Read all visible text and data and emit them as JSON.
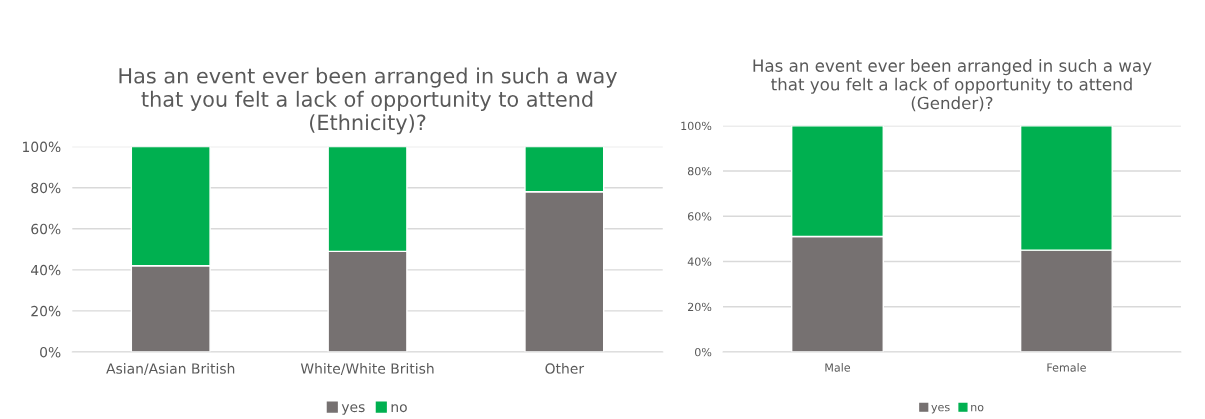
{
  "chart_data": [
    {
      "type": "bar",
      "stacked": true,
      "title": "Has an event ever been arranged in such a way\nthat you felt a lack of opportunity to attend\n(Ethnicity)?",
      "categories": [
        "Asian/Asian British",
        "White/White British",
        "Other"
      ],
      "series": [
        {
          "name": "yes",
          "color": "#767171",
          "values": [
            42,
            49,
            78
          ]
        },
        {
          "name": "no",
          "color": "#00b050",
          "values": [
            58,
            51,
            22
          ]
        }
      ],
      "ylim": [
        0,
        100
      ],
      "yticks": [
        {
          "value": 0,
          "label": "0%"
        },
        {
          "value": 20,
          "label": "20%"
        },
        {
          "value": 40,
          "label": "40%"
        },
        {
          "value": 60,
          "label": "60%"
        },
        {
          "value": 80,
          "label": "80%"
        },
        {
          "value": 100,
          "label": "100%"
        }
      ],
      "grid": "y",
      "legend": "bottom"
    },
    {
      "type": "bar",
      "stacked": true,
      "title": "Has an event ever been arranged in such a way\nthat you felt a lack of opportunity to attend\n(Gender)?",
      "categories": [
        "Male",
        "Female"
      ],
      "series": [
        {
          "name": "yes",
          "color": "#767171",
          "values": [
            51,
            45
          ]
        },
        {
          "name": "no",
          "color": "#00b050",
          "values": [
            49,
            55
          ]
        }
      ],
      "ylim": [
        0,
        100
      ],
      "yticks": [
        {
          "value": 0,
          "label": "0%"
        },
        {
          "value": 20,
          "label": "20%"
        },
        {
          "value": 40,
          "label": "40%"
        },
        {
          "value": 60,
          "label": "60%"
        },
        {
          "value": 80,
          "label": "80%"
        },
        {
          "value": 100,
          "label": "100%"
        }
      ],
      "grid": "y",
      "legend": "bottom"
    }
  ]
}
